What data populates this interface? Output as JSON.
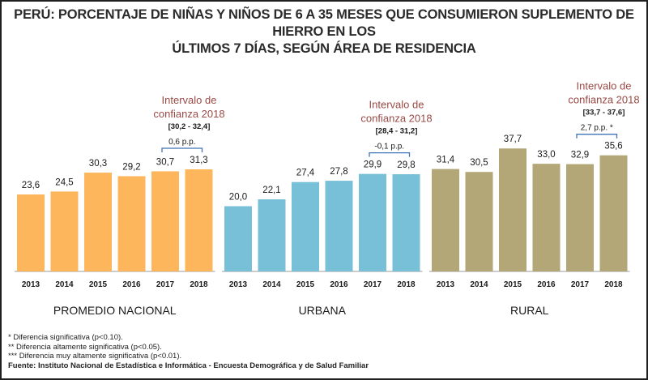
{
  "title_line1": "PERÚ: PORCENTAJE DE NIÑAS Y NIÑOS DE 6 A 35 MESES QUE CONSUMIERON SUPLEMENTO DE HIERRO EN LOS",
  "title_line2": "ÚLTIMOS 7 DÍAS, SEGÚN ÁREA DE RESIDENCIA",
  "colors": {
    "nacional": "#fdb65c",
    "urbana": "#78bfd8",
    "rural": "#b3a777",
    "annotation": "#9a4a45"
  },
  "chart_data": {
    "type": "bar",
    "categories": [
      "2013",
      "2014",
      "2015",
      "2016",
      "2017",
      "2018"
    ],
    "ylim": [
      0,
      45
    ],
    "groups": [
      {
        "name": "PROMEDIO NACIONAL",
        "values": [
          23.6,
          24.5,
          30.3,
          29.2,
          30.7,
          31.3
        ],
        "value_labels": [
          "23,6",
          "24,5",
          "30,3",
          "29,2",
          "30,7",
          "31,3"
        ],
        "ci_label_line1": "Intervalo de",
        "ci_label_line2": "confianza 2018",
        "ci_range": "[30,2 - 32,4]",
        "change_label": "0,6 p.p."
      },
      {
        "name": "URBANA",
        "values": [
          20.0,
          22.1,
          27.4,
          27.8,
          29.9,
          29.8
        ],
        "value_labels": [
          "20,0",
          "22,1",
          "27,4",
          "27,8",
          "29,9",
          "29,8"
        ],
        "ci_label_line1": "Intervalo de",
        "ci_label_line2": "confianza 2018",
        "ci_range": "[28,4 - 31,2]",
        "change_label": "-0,1 p.p."
      },
      {
        "name": "RURAL",
        "values": [
          31.4,
          30.5,
          37.7,
          33.0,
          32.9,
          35.6
        ],
        "value_labels": [
          "31,4",
          "30,5",
          "37,7",
          "33,0",
          "32,9",
          "35,6"
        ],
        "ci_label_line1": "Intervalo de",
        "ci_label_line2": "confianza 2018",
        "ci_range": "[33,7 - 37,6]",
        "change_label": "2,7 p.p. *"
      }
    ]
  },
  "notes": {
    "n1": "*      Diferencia significativa (p<0.10).",
    "n2": "**    Diferencia altamente significativa (p<0.05).",
    "n3": "*** Diferencia muy altamente significativa (p<0.01).",
    "source": "Fuente: Instituto Nacional de Estadística e Informática - Encuesta Demográfica y de Salud Familiar"
  }
}
